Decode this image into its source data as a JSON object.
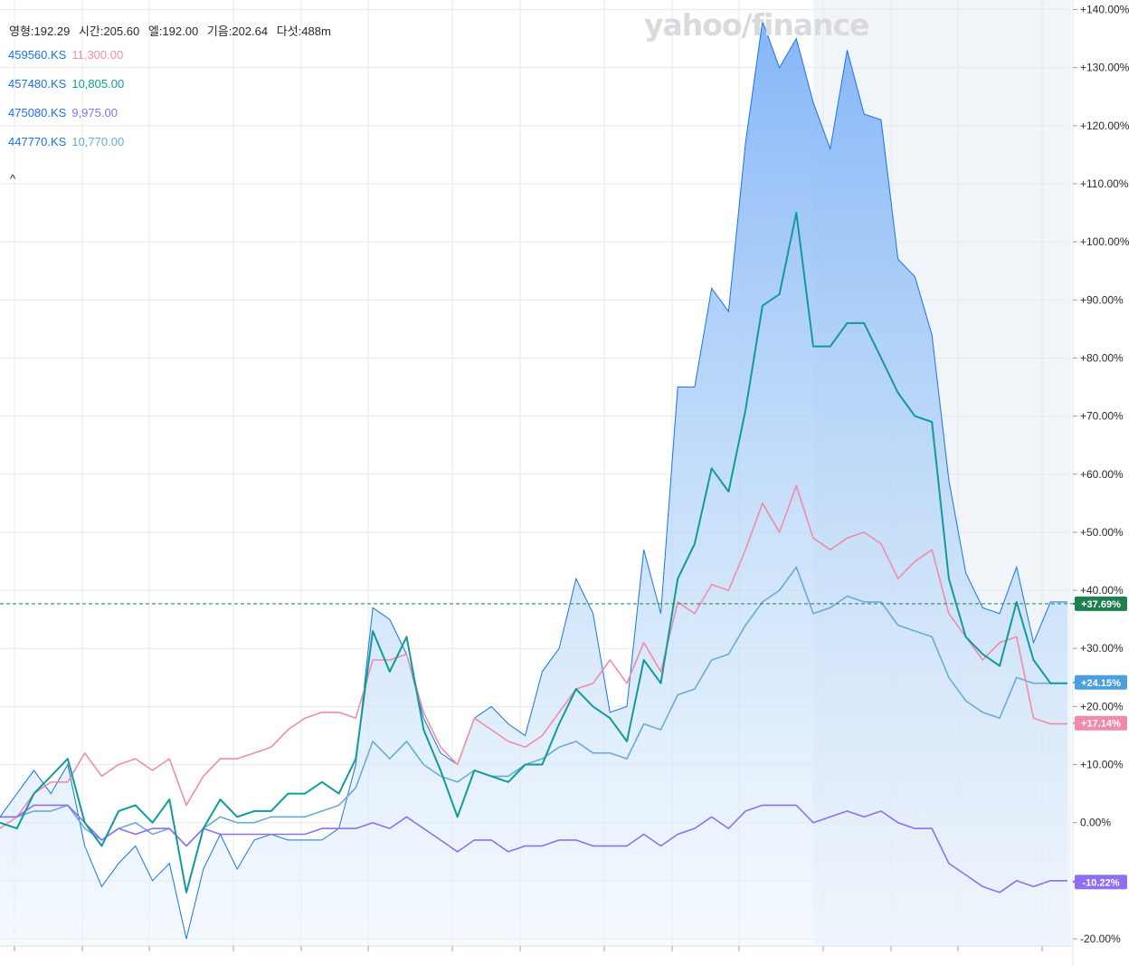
{
  "watermark": "yahoo/finance",
  "ohlc": {
    "open": "영형:192.29",
    "high": "시간:205.60",
    "low": "엘:192.00",
    "close": "기음:202.64",
    "volume": "다섯:488m"
  },
  "legend": [
    {
      "symbol": "459560.KS",
      "price": "11,300.00",
      "color": "#f08ca8"
    },
    {
      "symbol": "457480.KS",
      "price": "10,805.00",
      "color": "#129a9a"
    },
    {
      "symbol": "475080.KS",
      "price": "9,975.00",
      "color": "#8d6ff0"
    },
    {
      "symbol": "447770.KS",
      "price": "10,770.00",
      "color": "#6aaad8"
    }
  ],
  "collapse_label": "^",
  "chart_data": {
    "type": "line",
    "ylim": [
      -22,
      142
    ],
    "y_ticks": [
      -20,
      -10,
      0,
      10,
      20,
      30,
      40,
      50,
      60,
      70,
      80,
      90,
      100,
      110,
      120,
      130,
      140
    ],
    "y_tick_labels": [
      "-20.00%",
      "-10.00%",
      "0.00%",
      "+10.00%",
      "+20.00%",
      "+30.00%",
      "+40.00%",
      "+50.00%",
      "+60.00%",
      "+70.00%",
      "+80.00%",
      "+90.00%",
      "+100.00%",
      "+110.00%",
      "+120.00%",
      "+130.00%",
      "+140.00%"
    ],
    "x_count": 64,
    "reference_line": 37.69,
    "series": [
      {
        "name": "main",
        "color": "#1a73e8",
        "area": true,
        "values": [
          1,
          5,
          9,
          5,
          10,
          -4,
          -11,
          -7,
          -4,
          -10,
          -7,
          -20,
          -8,
          -2,
          -8,
          -3,
          -2,
          -3,
          -3,
          -3,
          -1,
          10,
          37,
          35,
          29,
          18,
          12,
          10,
          18,
          20,
          17,
          15,
          26,
          30,
          42,
          36,
          19,
          20,
          47,
          36,
          75,
          75,
          92,
          88,
          117,
          138,
          130,
          135,
          124,
          116,
          133,
          122,
          121,
          97,
          94,
          84,
          59,
          43,
          37,
          36,
          44,
          31,
          38,
          38
        ]
      },
      {
        "name": "457480.KS",
        "color": "#129a9a",
        "bold": true,
        "values": [
          0,
          -1,
          5,
          8,
          11,
          0,
          -4,
          2,
          3,
          0,
          4,
          -12,
          -1,
          4,
          1,
          2,
          2,
          5,
          5,
          7,
          5,
          11,
          33,
          26,
          32,
          16,
          9,
          1,
          9,
          8,
          7,
          10,
          10,
          17,
          23,
          20,
          18,
          14,
          28,
          24,
          42,
          48,
          61,
          57,
          71,
          89,
          91,
          105,
          82,
          82,
          86,
          86,
          80,
          74,
          70,
          69,
          42,
          32,
          29,
          27,
          38,
          28,
          24,
          24
        ]
      },
      {
        "name": "459560.KS",
        "color": "#f08ca8",
        "values": [
          -1,
          1,
          5,
          7,
          7,
          12,
          8,
          10,
          11,
          9,
          11,
          3,
          8,
          11,
          11,
          12,
          13,
          16,
          18,
          19,
          19,
          18,
          28,
          28,
          29,
          19,
          13,
          10,
          18,
          16,
          14,
          13,
          15,
          19,
          23,
          24,
          28,
          24,
          31,
          26,
          38,
          36,
          41,
          40,
          47,
          55,
          50,
          58,
          49,
          47,
          49,
          50,
          48,
          42,
          45,
          47,
          36,
          32,
          28,
          31,
          32,
          18,
          17,
          17
        ]
      },
      {
        "name": "447770.KS",
        "color": "#6aaad8",
        "values": [
          1,
          1,
          2,
          2,
          3,
          -1,
          -3,
          -1,
          0,
          -2,
          -1,
          -4,
          -1,
          1,
          0,
          0,
          1,
          1,
          1,
          2,
          3,
          6,
          14,
          11,
          14,
          10,
          8,
          7,
          9,
          8,
          8,
          10,
          11,
          13,
          14,
          12,
          12,
          11,
          17,
          16,
          22,
          23,
          28,
          29,
          34,
          38,
          40,
          44,
          36,
          37,
          39,
          38,
          38,
          34,
          33,
          32,
          25,
          21,
          19,
          18,
          25,
          24,
          24,
          24
        ]
      },
      {
        "name": "475080.KS",
        "color": "#8d6ff0",
        "values": [
          1,
          1,
          3,
          3,
          3,
          0,
          -3,
          -1,
          -2,
          -1,
          -1,
          -4,
          -1,
          -2,
          -2,
          -2,
          -2,
          -2,
          -2,
          -1,
          -1,
          -1,
          0,
          -1,
          1,
          -1,
          -3,
          -5,
          -3,
          -3,
          -5,
          -4,
          -4,
          -3,
          -3,
          -4,
          -4,
          -4,
          -2,
          -4,
          -2,
          -1,
          1,
          -1,
          2,
          3,
          3,
          3,
          0,
          1,
          2,
          1,
          2,
          0,
          -1,
          -1,
          -7,
          -9,
          -11,
          -12,
          -10,
          -11,
          -10,
          -10
        ]
      }
    ],
    "badges": [
      {
        "label": "+37.69%",
        "value": 37.69,
        "color": "#1e7f4e"
      },
      {
        "label": "+24.15%",
        "value": 24.15,
        "color": "#4a9fdc"
      },
      {
        "label": "+17.14%",
        "value": 17.14,
        "color": "#f08ca8"
      },
      {
        "label": "-10.22%",
        "value": -10.22,
        "color": "#8d6ff0"
      }
    ],
    "shaded_region": [
      48,
      63
    ]
  }
}
